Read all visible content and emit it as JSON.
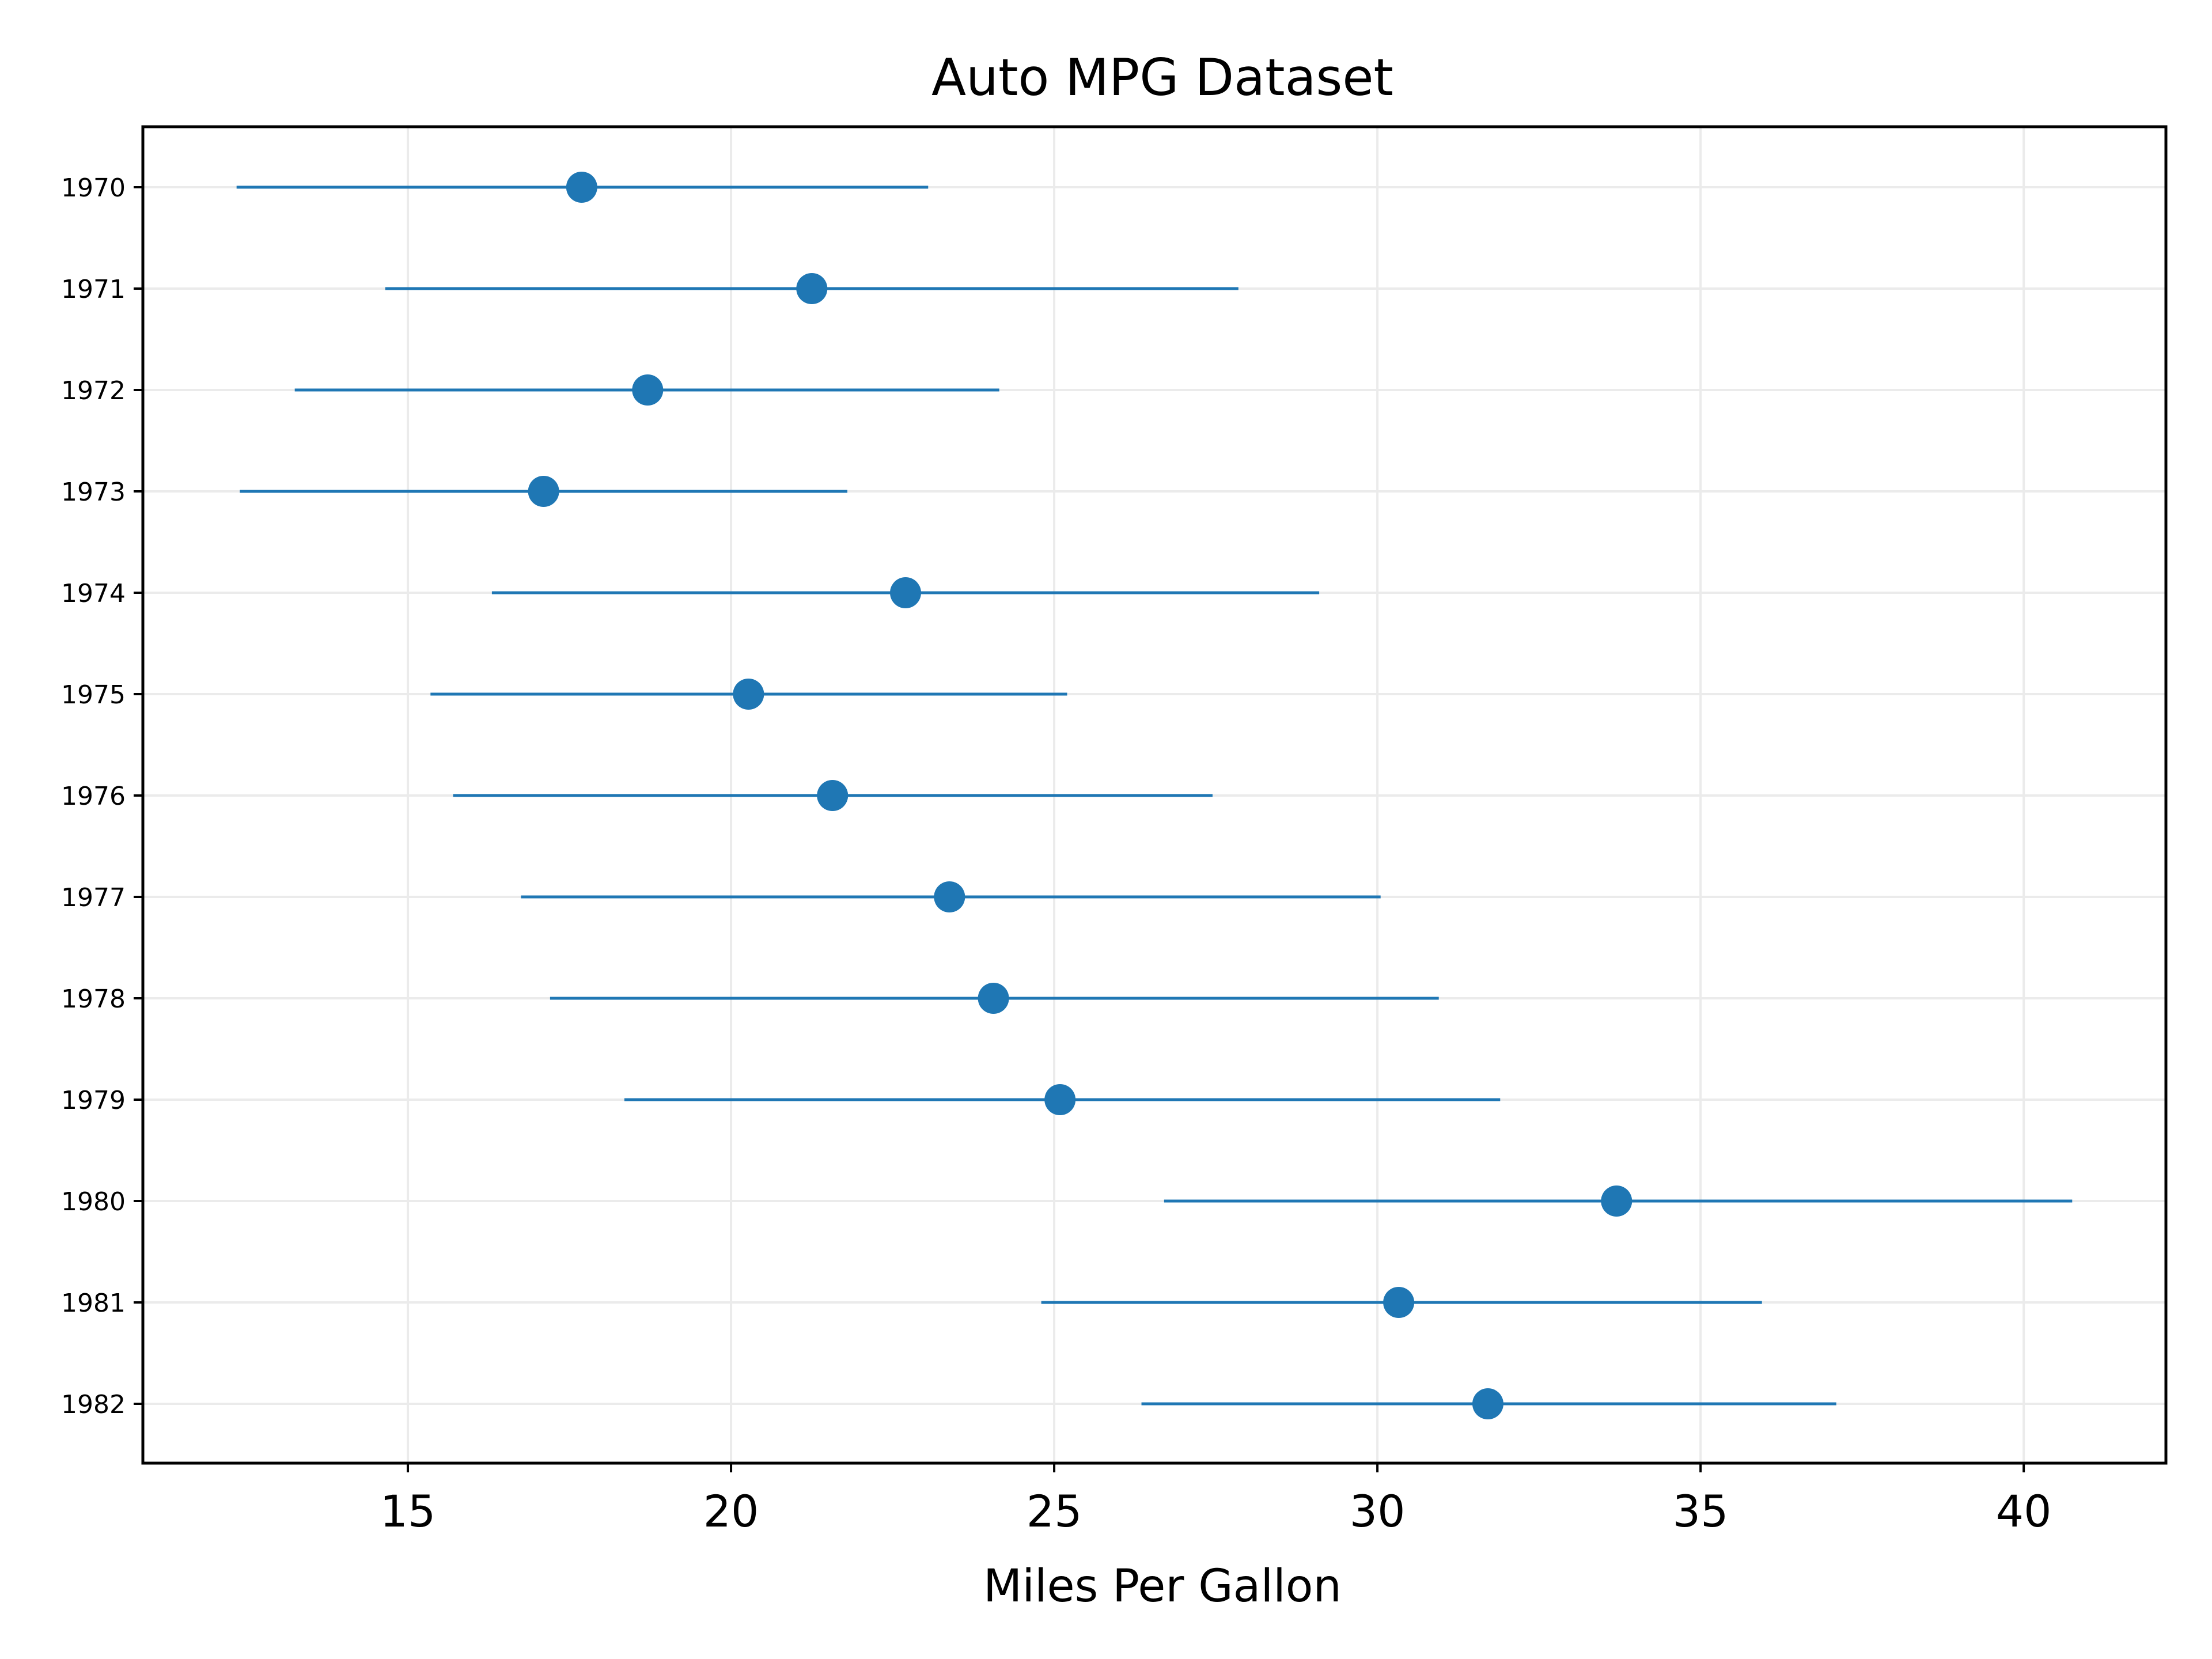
{
  "chart_data": {
    "type": "scatter",
    "title": "Auto MPG Dataset",
    "xlabel": "Miles Per Gallon",
    "ylabel": "",
    "xlim": [
      10.9,
      42.2
    ],
    "xticks": [
      15,
      20,
      25,
      30,
      35,
      40
    ],
    "grid": true,
    "legend": "none",
    "colors": {
      "marker": "#1f77b4",
      "errorbar": "#1f77b4",
      "grid": "#ebebeb",
      "axes": "#000000"
    },
    "categories": [
      "1970",
      "1971",
      "1972",
      "1973",
      "1974",
      "1975",
      "1976",
      "1977",
      "1978",
      "1979",
      "1980",
      "1981",
      "1982"
    ],
    "series": [
      {
        "mean": [
          17.69,
          21.25,
          18.71,
          17.1,
          22.7,
          20.27,
          21.57,
          23.38,
          24.06,
          25.09,
          33.7,
          30.33,
          31.71
        ],
        "low": [
          12.35,
          14.65,
          13.25,
          12.4,
          16.3,
          15.35,
          15.7,
          16.75,
          17.2,
          18.35,
          26.7,
          24.8,
          26.35
        ],
        "high": [
          23.05,
          27.85,
          24.15,
          21.8,
          29.1,
          25.2,
          27.45,
          30.05,
          30.95,
          31.9,
          40.75,
          35.95,
          37.1
        ]
      }
    ]
  }
}
